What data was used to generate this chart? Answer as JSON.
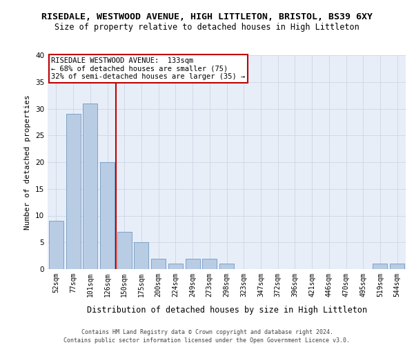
{
  "title1": "RISEDALE, WESTWOOD AVENUE, HIGH LITTLETON, BRISTOL, BS39 6XY",
  "title2": "Size of property relative to detached houses in High Littleton",
  "xlabel": "Distribution of detached houses by size in High Littleton",
  "ylabel": "Number of detached properties",
  "footer_line1": "Contains HM Land Registry data © Crown copyright and database right 2024.",
  "footer_line2": "Contains public sector information licensed under the Open Government Licence v3.0.",
  "categories": [
    "52sqm",
    "77sqm",
    "101sqm",
    "126sqm",
    "150sqm",
    "175sqm",
    "200sqm",
    "224sqm",
    "249sqm",
    "273sqm",
    "298sqm",
    "323sqm",
    "347sqm",
    "372sqm",
    "396sqm",
    "421sqm",
    "446sqm",
    "470sqm",
    "495sqm",
    "519sqm",
    "544sqm"
  ],
  "values": [
    9,
    29,
    31,
    20,
    7,
    5,
    2,
    1,
    2,
    2,
    1,
    0,
    0,
    0,
    0,
    0,
    0,
    0,
    0,
    1,
    1
  ],
  "bar_color": "#b8cce4",
  "bar_edge_color": "#7099c0",
  "grid_color": "#d0d8e8",
  "background_color": "#e8eef8",
  "vline_color": "#c00000",
  "annotation_text": "RISEDALE WESTWOOD AVENUE:  133sqm\n← 68% of detached houses are smaller (75)\n32% of semi-detached houses are larger (35) →",
  "annotation_box_color": "#ffffff",
  "annotation_box_edge": "#c00000",
  "ylim": [
    0,
    40
  ],
  "yticks": [
    0,
    5,
    10,
    15,
    20,
    25,
    30,
    35,
    40
  ]
}
